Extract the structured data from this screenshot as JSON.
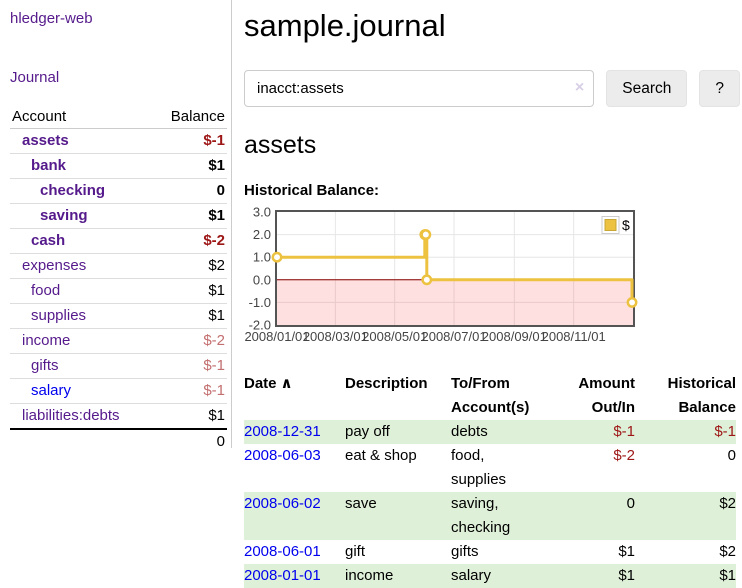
{
  "app": {
    "title": "hledger-web"
  },
  "colors": {
    "purple": "#551a8b",
    "blue": "#0000ee",
    "neg": "#9d1616",
    "negPale": "#c36f6f",
    "rowGreen": "#dff0d8"
  },
  "icons": {
    "clear_icon": "×",
    "sort_asc_icon": "∧"
  },
  "sidebar": {
    "journal_link": "Journal",
    "accounts_table": {
      "col_account": "Account",
      "col_balance": "Balance",
      "rows": [
        {
          "name": "assets",
          "depth": 1,
          "bold": true,
          "link_color": "purple",
          "balance": "$-1",
          "balance_color": "neg"
        },
        {
          "name": "bank",
          "depth": 2,
          "bold": true,
          "link_color": "purple",
          "balance": "$1",
          "balance_color": "black"
        },
        {
          "name": "checking",
          "depth": 3,
          "bold": true,
          "link_color": "purple",
          "balance": "0",
          "balance_color": "black"
        },
        {
          "name": "saving",
          "depth": 3,
          "bold": true,
          "link_color": "purple",
          "balance": "$1",
          "balance_color": "black"
        },
        {
          "name": "cash",
          "depth": 2,
          "bold": true,
          "link_color": "purple",
          "balance": "$-2",
          "balance_color": "neg"
        },
        {
          "name": "expenses",
          "depth": 1,
          "bold": false,
          "link_color": "purple",
          "balance": "$2",
          "balance_color": "black"
        },
        {
          "name": "food",
          "depth": 2,
          "bold": false,
          "link_color": "purple",
          "balance": "$1",
          "balance_color": "black"
        },
        {
          "name": "supplies",
          "depth": 2,
          "bold": false,
          "link_color": "purple",
          "balance": "$1",
          "balance_color": "black"
        },
        {
          "name": "income",
          "depth": 1,
          "bold": false,
          "link_color": "purple",
          "balance": "$-2",
          "balance_color": "neg-pale"
        },
        {
          "name": "gifts",
          "depth": 2,
          "bold": false,
          "link_color": "purple",
          "balance": "$-1",
          "balance_color": "neg-pale"
        },
        {
          "name": "salary",
          "depth": 2,
          "bold": false,
          "link_color": "blue",
          "balance": "$-1",
          "balance_color": "neg-pale"
        },
        {
          "name": "liabilities:debts",
          "depth": 1,
          "bold": false,
          "link_color": "purple",
          "balance": "$1",
          "balance_color": "black"
        }
      ],
      "total": "0"
    }
  },
  "main": {
    "title": "sample.journal",
    "search": {
      "query": "inacct:assets",
      "search_label": "Search",
      "help_label": "?"
    },
    "account_heading": "assets",
    "chart_label": "Historical Balance:"
  },
  "chart_data": {
    "type": "line",
    "title": "Historical Balance",
    "step": true,
    "legend": "$",
    "legend_position": "top-right",
    "series": [
      {
        "name": "$",
        "color": "#edc240",
        "points": [
          [
            "2008-01-01",
            1
          ],
          [
            "2008-06-01",
            2
          ],
          [
            "2008-06-02",
            2
          ],
          [
            "2008-06-03",
            0
          ],
          [
            "2008-12-31",
            -1
          ]
        ]
      }
    ],
    "x_range": [
      "2008-01-01",
      "2009-01-01"
    ],
    "x_ticks": [
      "2008/01/01",
      "2008/03/01",
      "2008/05/01",
      "2008/07/01",
      "2008/09/01",
      "2008/11/01"
    ],
    "ylim": [
      -2,
      3
    ],
    "y_ticks": [
      3.0,
      2.0,
      1.0,
      0.0,
      -1.0,
      -2.0
    ],
    "grid": true,
    "zero_line_color": "#8b0000",
    "negative_region": true,
    "negative_region_color": "#ff0000"
  },
  "register_table": {
    "headers": {
      "date": "Date",
      "description": "Description",
      "accounts": "To/From Account(s)",
      "amount": "Amount Out/In",
      "balance": "Historical Balance"
    },
    "rows": [
      {
        "date": "2008-12-31",
        "description": "pay off",
        "accounts": "debts",
        "amount": "$-1",
        "amount_negative": true,
        "balance": "$-1",
        "balance_negative": true
      },
      {
        "date": "2008-06-03",
        "description": "eat & shop",
        "accounts": "food, supplies",
        "amount": "$-2",
        "amount_negative": true,
        "balance": "0",
        "balance_negative": false
      },
      {
        "date": "2008-06-02",
        "description": "save",
        "accounts": "saving, checking",
        "amount": "0",
        "amount_negative": false,
        "balance": "$2",
        "balance_negative": false
      },
      {
        "date": "2008-06-01",
        "description": "gift",
        "accounts": "gifts",
        "amount": "$1",
        "amount_negative": false,
        "balance": "$2",
        "balance_negative": false
      },
      {
        "date": "2008-01-01",
        "description": "income",
        "accounts": "salary",
        "amount": "$1",
        "amount_negative": false,
        "balance": "$1",
        "balance_negative": false
      }
    ]
  }
}
